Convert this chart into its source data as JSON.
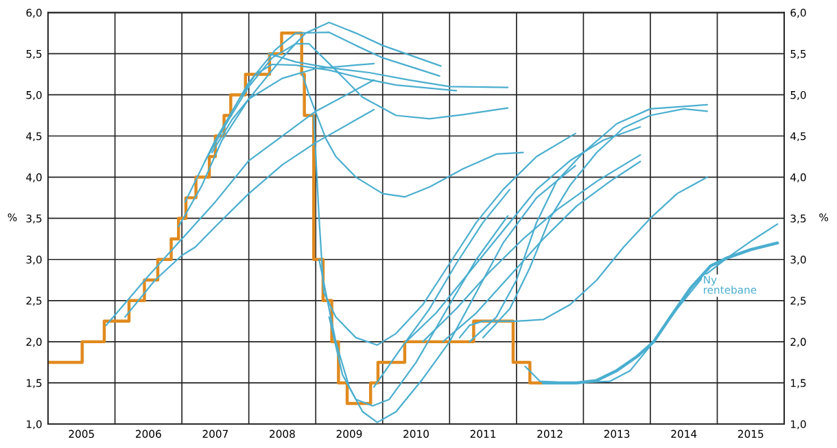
{
  "chart_data": {
    "type": "line",
    "xlabel": null,
    "ylabel": "%",
    "y2label": "%",
    "xlim": [
      2005,
      2016
    ],
    "xticks": [
      {
        "value": 2005,
        "label": null
      },
      {
        "value": 2005.5,
        "label": "2005"
      },
      {
        "value": 2006,
        "label": null
      },
      {
        "value": 2006.5,
        "label": "2006"
      },
      {
        "value": 2007,
        "label": null
      },
      {
        "value": 2007.5,
        "label": "2007"
      },
      {
        "value": 2008,
        "label": null
      },
      {
        "value": 2008.5,
        "label": "2008"
      },
      {
        "value": 2009,
        "label": null
      },
      {
        "value": 2009.5,
        "label": "2009"
      },
      {
        "value": 2010,
        "label": null
      },
      {
        "value": 2010.5,
        "label": "2010"
      },
      {
        "value": 2011,
        "label": null
      },
      {
        "value": 2011.5,
        "label": "2011"
      },
      {
        "value": 2012,
        "label": null
      },
      {
        "value": 2012.5,
        "label": "2012"
      },
      {
        "value": 2013,
        "label": null
      },
      {
        "value": 2013.5,
        "label": "2013"
      },
      {
        "value": 2014,
        "label": null
      },
      {
        "value": 2014.5,
        "label": "2014"
      },
      {
        "value": 2015,
        "label": null
      },
      {
        "value": 2015.5,
        "label": "2015"
      },
      {
        "value": 2016,
        "label": null
      }
    ],
    "ylim": [
      1.0,
      6.0
    ],
    "yticks": [
      {
        "value": 1.0,
        "label": "1,0"
      },
      {
        "value": 1.5,
        "label": "1,5"
      },
      {
        "value": 2.0,
        "label": "2,0"
      },
      {
        "value": 2.5,
        "label": "2,5"
      },
      {
        "value": 3.0,
        "label": "3,0"
      },
      {
        "value": 3.5,
        "label": "3,5"
      },
      {
        "value": 4.0,
        "label": "4,0"
      },
      {
        "value": 4.5,
        "label": "4,5"
      },
      {
        "value": 5.0,
        "label": "5,0"
      },
      {
        "value": 5.5,
        "label": "5,5"
      },
      {
        "value": 6.0,
        "label": "6,0"
      }
    ],
    "y2lim": [
      1.0,
      6.0
    ],
    "y2ticks": [
      {
        "value": 1.0,
        "label": "1,0"
      },
      {
        "value": 1.5,
        "label": "1,5"
      },
      {
        "value": 2.0,
        "label": "2,0"
      },
      {
        "value": 2.5,
        "label": "2,5"
      },
      {
        "value": 3.0,
        "label": "3,0"
      },
      {
        "value": 3.5,
        "label": "3,5"
      },
      {
        "value": 4.0,
        "label": "4,0"
      },
      {
        "value": 4.5,
        "label": "4,5"
      },
      {
        "value": 5.0,
        "label": "5,0"
      },
      {
        "value": 5.5,
        "label": "5,5"
      },
      {
        "value": 6.0,
        "label": "6,0"
      }
    ],
    "grid": true,
    "legend": false,
    "series": [
      {
        "color": "#4aaecf",
        "x": [
          2005.87,
          2006.5,
          2007,
          2007.5,
          2008,
          2008.5,
          2009,
          2009.87
        ],
        "values": [
          2.2,
          2.8,
          3.25,
          3.7,
          4.2,
          4.5,
          4.8,
          5.18
        ]
      },
      {
        "color": "#4aaecf",
        "x": [
          2006.15,
          2006.6,
          2007,
          2007.2,
          2007.5,
          2008,
          2008.5,
          2009,
          2009.87
        ],
        "values": [
          2.3,
          2.75,
          3.05,
          3.15,
          3.4,
          3.8,
          4.15,
          4.42,
          4.82
        ]
      },
      {
        "color": "#4aaecf",
        "x": [
          2006.95,
          2007.3,
          2007.6,
          2008,
          2008.5,
          2008.85,
          2009.2,
          2009.6,
          2010,
          2010.87
        ],
        "values": [
          3.4,
          3.9,
          4.45,
          4.95,
          5.45,
          5.75,
          5.88,
          5.75,
          5.6,
          5.35
        ]
      },
      {
        "color": "#4aaecf",
        "x": [
          2007.05,
          2007.5,
          2008,
          2008.4,
          2008.7,
          2009.2,
          2009.6,
          2010,
          2010.85
        ],
        "values": [
          3.7,
          4.45,
          5.15,
          5.55,
          5.75,
          5.76,
          5.6,
          5.45,
          5.23
        ]
      },
      {
        "color": "#4aaecf",
        "x": [
          2007.35,
          2007.7,
          2008,
          2008.35,
          2008.7,
          2008.9,
          2009.3,
          2009.7,
          2010.2,
          2010.7,
          2011.2,
          2011.87
        ],
        "values": [
          4.2,
          4.7,
          5.1,
          5.45,
          5.62,
          5.62,
          5.3,
          4.97,
          4.75,
          4.71,
          4.76,
          4.84
        ]
      },
      {
        "color": "#4aaecf",
        "x": [
          2007.45,
          2007.75,
          2008,
          2008.5,
          2009,
          2009.87
        ],
        "values": [
          4.3,
          4.7,
          4.95,
          5.2,
          5.32,
          5.38
        ]
      },
      {
        "color": "#4aaecf",
        "x": [
          2007.9,
          2008.1,
          2008.35,
          2008.7,
          2009.2,
          2009.7,
          2010.2,
          2011.1
        ],
        "values": [
          5.0,
          5.25,
          5.37,
          5.36,
          5.3,
          5.2,
          5.12,
          5.05
        ]
      },
      {
        "color": "#4aaecf",
        "x": [
          2008.3,
          2008.7,
          2009.2,
          2009.8,
          2010.4,
          2011,
          2011.87
        ],
        "values": [
          5.5,
          5.4,
          5.33,
          5.27,
          5.18,
          5.1,
          5.09
        ]
      },
      {
        "color": "#4aaecf",
        "x": [
          2008.8,
          2008.9,
          2009.15,
          2009.3,
          2009.6,
          2010.0,
          2010.33,
          2010.7,
          2011.2,
          2011.7,
          2012.1
        ],
        "values": [
          5.25,
          5.0,
          4.47,
          4.25,
          4.0,
          3.8,
          3.76,
          3.88,
          4.1,
          4.28,
          4.3
        ]
      },
      {
        "color": "#4aaecf",
        "x": [
          2008.97,
          2009.05,
          2009.12,
          2009.3,
          2009.6,
          2009.92,
          2010.2,
          2010.6,
          2011.0,
          2011.4,
          2011.8,
          2012.3,
          2012.88
        ],
        "values": [
          4.75,
          3.5,
          2.6,
          2.3,
          2.05,
          1.96,
          2.1,
          2.45,
          2.95,
          3.45,
          3.85,
          4.25,
          4.53
        ]
      },
      {
        "color": "#4aaecf",
        "x": [
          2009.05,
          2009.3,
          2009.5,
          2009.7,
          2009.92,
          2010.2,
          2010.6,
          2011.0,
          2011.4,
          2011.8,
          2012.3,
          2012.88
        ],
        "values": [
          3.0,
          2.0,
          1.45,
          1.15,
          1.02,
          1.15,
          1.55,
          2.0,
          2.6,
          3.2,
          3.75,
          4.14
        ]
      },
      {
        "color": "#4aaecf",
        "x": [
          2009.2,
          2009.4,
          2009.6,
          2009.85,
          2010.1,
          2010.5,
          2011.0,
          2011.4,
          2011.87
        ],
        "values": [
          2.3,
          1.6,
          1.3,
          1.22,
          1.3,
          1.75,
          2.45,
          3.0,
          3.53
        ]
      },
      {
        "color": "#4aaecf",
        "x": [
          2009.87,
          2010.3,
          2010.7,
          2011.1,
          2011.5,
          2011.9
        ],
        "values": [
          1.45,
          1.95,
          2.4,
          2.95,
          3.45,
          3.85
        ]
      },
      {
        "color": "#4aaecf",
        "x": [
          2010.35,
          2010.8,
          2011.3,
          2011.8,
          2012.3,
          2012.8,
          2013.3,
          2013.85
        ],
        "values": [
          2.0,
          2.35,
          2.85,
          3.35,
          3.85,
          4.2,
          4.45,
          4.61
        ]
      },
      {
        "color": "#4aaecf",
        "x": [
          2010.6,
          2011.1,
          2011.6,
          2012.1,
          2012.6,
          2013.2,
          2013.85
        ],
        "values": [
          2.0,
          2.4,
          2.85,
          3.25,
          3.6,
          3.95,
          4.27
        ]
      },
      {
        "color": "#4aaecf",
        "x": [
          2010.9,
          2011.4,
          2011.9,
          2012.4,
          2012.9,
          2013.4,
          2013.85
        ],
        "values": [
          2.0,
          2.35,
          2.8,
          3.25,
          3.65,
          3.95,
          4.19
        ]
      },
      {
        "color": "#4aaecf",
        "x": [
          2011.15,
          2011.3,
          2011.5,
          2012,
          2012.4,
          2012.8,
          2013.2,
          2013.6,
          2014.0,
          2014.4,
          2014.85
        ],
        "values": [
          2.05,
          2.2,
          2.25,
          2.25,
          2.27,
          2.45,
          2.75,
          3.15,
          3.5,
          3.8,
          4.0
        ]
      },
      {
        "color": "#4aaecf",
        "x": [
          2011.3,
          2011.7,
          2012,
          2012.3,
          2012.6,
          2013,
          2013.5,
          2014,
          2014.85
        ],
        "values": [
          2.0,
          2.3,
          2.75,
          3.45,
          3.95,
          4.3,
          4.65,
          4.83,
          4.88
        ]
      },
      {
        "color": "#4aaecf",
        "x": [
          2011.5,
          2011.9,
          2012.2,
          2012.5,
          2012.8,
          2013.2,
          2013.6,
          2014,
          2014.5,
          2014.85
        ],
        "values": [
          2.05,
          2.4,
          2.9,
          3.5,
          3.9,
          4.3,
          4.6,
          4.75,
          4.83,
          4.8
        ]
      },
      {
        "color": "#4aaecf",
        "x": [
          2012.13,
          2012.35,
          2012.8,
          2013.4,
          2013.7,
          2014.0,
          2014.4,
          2014.8,
          2015.15,
          2015.5,
          2015.9
        ],
        "values": [
          1.7,
          1.52,
          1.5,
          1.52,
          1.65,
          1.95,
          2.4,
          2.8,
          3.02,
          3.22,
          3.43
        ]
      },
      {
        "name": "Ny rentebane",
        "color": "#4aaecf",
        "x": [
          2012.4,
          2012.9,
          2013.2,
          2013.5,
          2013.8,
          2014.05,
          2014.3,
          2014.6,
          2014.9,
          2015.15,
          2015.5,
          2015.9
        ],
        "values": [
          1.5,
          1.5,
          1.53,
          1.65,
          1.82,
          2.0,
          2.3,
          2.65,
          2.92,
          3.02,
          3.12,
          3.2
        ]
      },
      {
        "type": "step",
        "color": "#e08a1e",
        "x": [
          2005.0,
          2005.51,
          2005.84,
          2006.21,
          2006.44,
          2006.64,
          2006.84,
          2006.95,
          2007.06,
          2007.21,
          2007.41,
          2007.5,
          2007.63,
          2007.73,
          2007.95,
          2008.31,
          2008.49,
          2008.79,
          2008.83,
          2008.97,
          2009.11,
          2009.24,
          2009.34,
          2009.47,
          2009.82,
          2009.93,
          2010.33,
          2011.36,
          2011.95,
          2012.2,
          2012.38
        ],
        "values": [
          1.75,
          2.0,
          2.25,
          2.5,
          2.75,
          3.0,
          3.25,
          3.5,
          3.75,
          4.0,
          4.25,
          4.5,
          4.75,
          5.0,
          5.25,
          5.5,
          5.75,
          5.25,
          4.75,
          3.0,
          2.5,
          2.0,
          1.5,
          1.25,
          1.5,
          1.75,
          2.0,
          2.25,
          1.75,
          1.5,
          1.5
        ]
      }
    ]
  }
}
